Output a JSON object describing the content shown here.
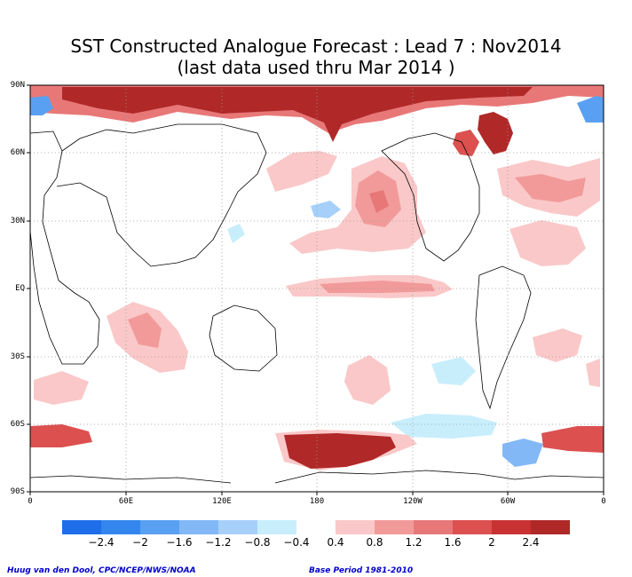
{
  "title": {
    "line1": "SST Constructed Analogue Forecast : Lead 7 : Nov2014",
    "line2": "(last data used thru Mar 2014 )"
  },
  "map": {
    "lat_labels": [
      "90N",
      "60N",
      "30N",
      "EQ",
      "30S",
      "60S",
      "90S"
    ],
    "lon_labels": [
      "0",
      "60E",
      "120E",
      "180",
      "120W",
      "60W",
      "0"
    ]
  },
  "legend": {
    "labels": [
      "−2.4",
      "−2",
      "−1.6",
      "−1.2",
      "−0.8",
      "−0.4",
      "0.4",
      "0.8",
      "1.2",
      "1.6",
      "2",
      "2.4"
    ],
    "colors_negative": [
      "#1e6eea",
      "#3286ee",
      "#5aa0f2",
      "#82b8f6",
      "#a6d0fa",
      "#c8eefc"
    ],
    "colors_positive": [
      "#fac8c8",
      "#f29a9a",
      "#e87878",
      "#dc5050",
      "#c83232",
      "#b02828"
    ]
  },
  "footer": {
    "left": "Huug van den Dool, CPC/NCEP/NWS/NOAA",
    "right": "Base Period 1981-2010"
  }
}
